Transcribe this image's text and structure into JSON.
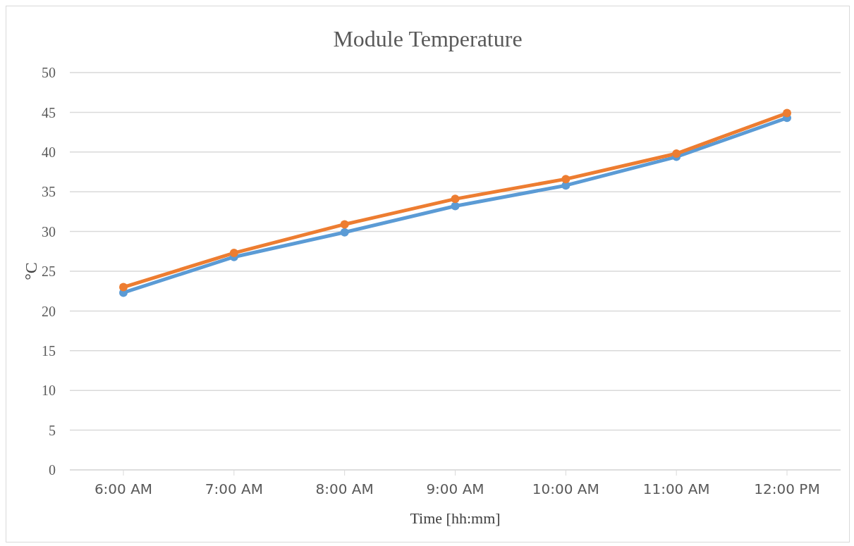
{
  "chart_data": {
    "type": "line",
    "title": "Module Temperature",
    "xlabel": "Time [hh:mm]",
    "ylabel": "°C",
    "categories": [
      "6:00 AM",
      "7:00 AM",
      "8:00 AM",
      "9:00 AM",
      "10:00 AM",
      "11:00 AM",
      "12:00 PM"
    ],
    "series": [
      {
        "color": "#5b9bd5",
        "values": [
          22.3,
          26.8,
          29.9,
          33.2,
          35.8,
          39.4,
          44.3
        ]
      },
      {
        "color": "#ed7d31",
        "values": [
          23.0,
          27.3,
          30.9,
          34.1,
          36.6,
          39.8,
          44.9
        ]
      }
    ],
    "ylim": [
      0,
      50
    ],
    "yticks": [
      0,
      5,
      10,
      15,
      20,
      25,
      30,
      35,
      40,
      45,
      50
    ],
    "grid": "y",
    "marker": "circle",
    "line_style": "solid"
  }
}
